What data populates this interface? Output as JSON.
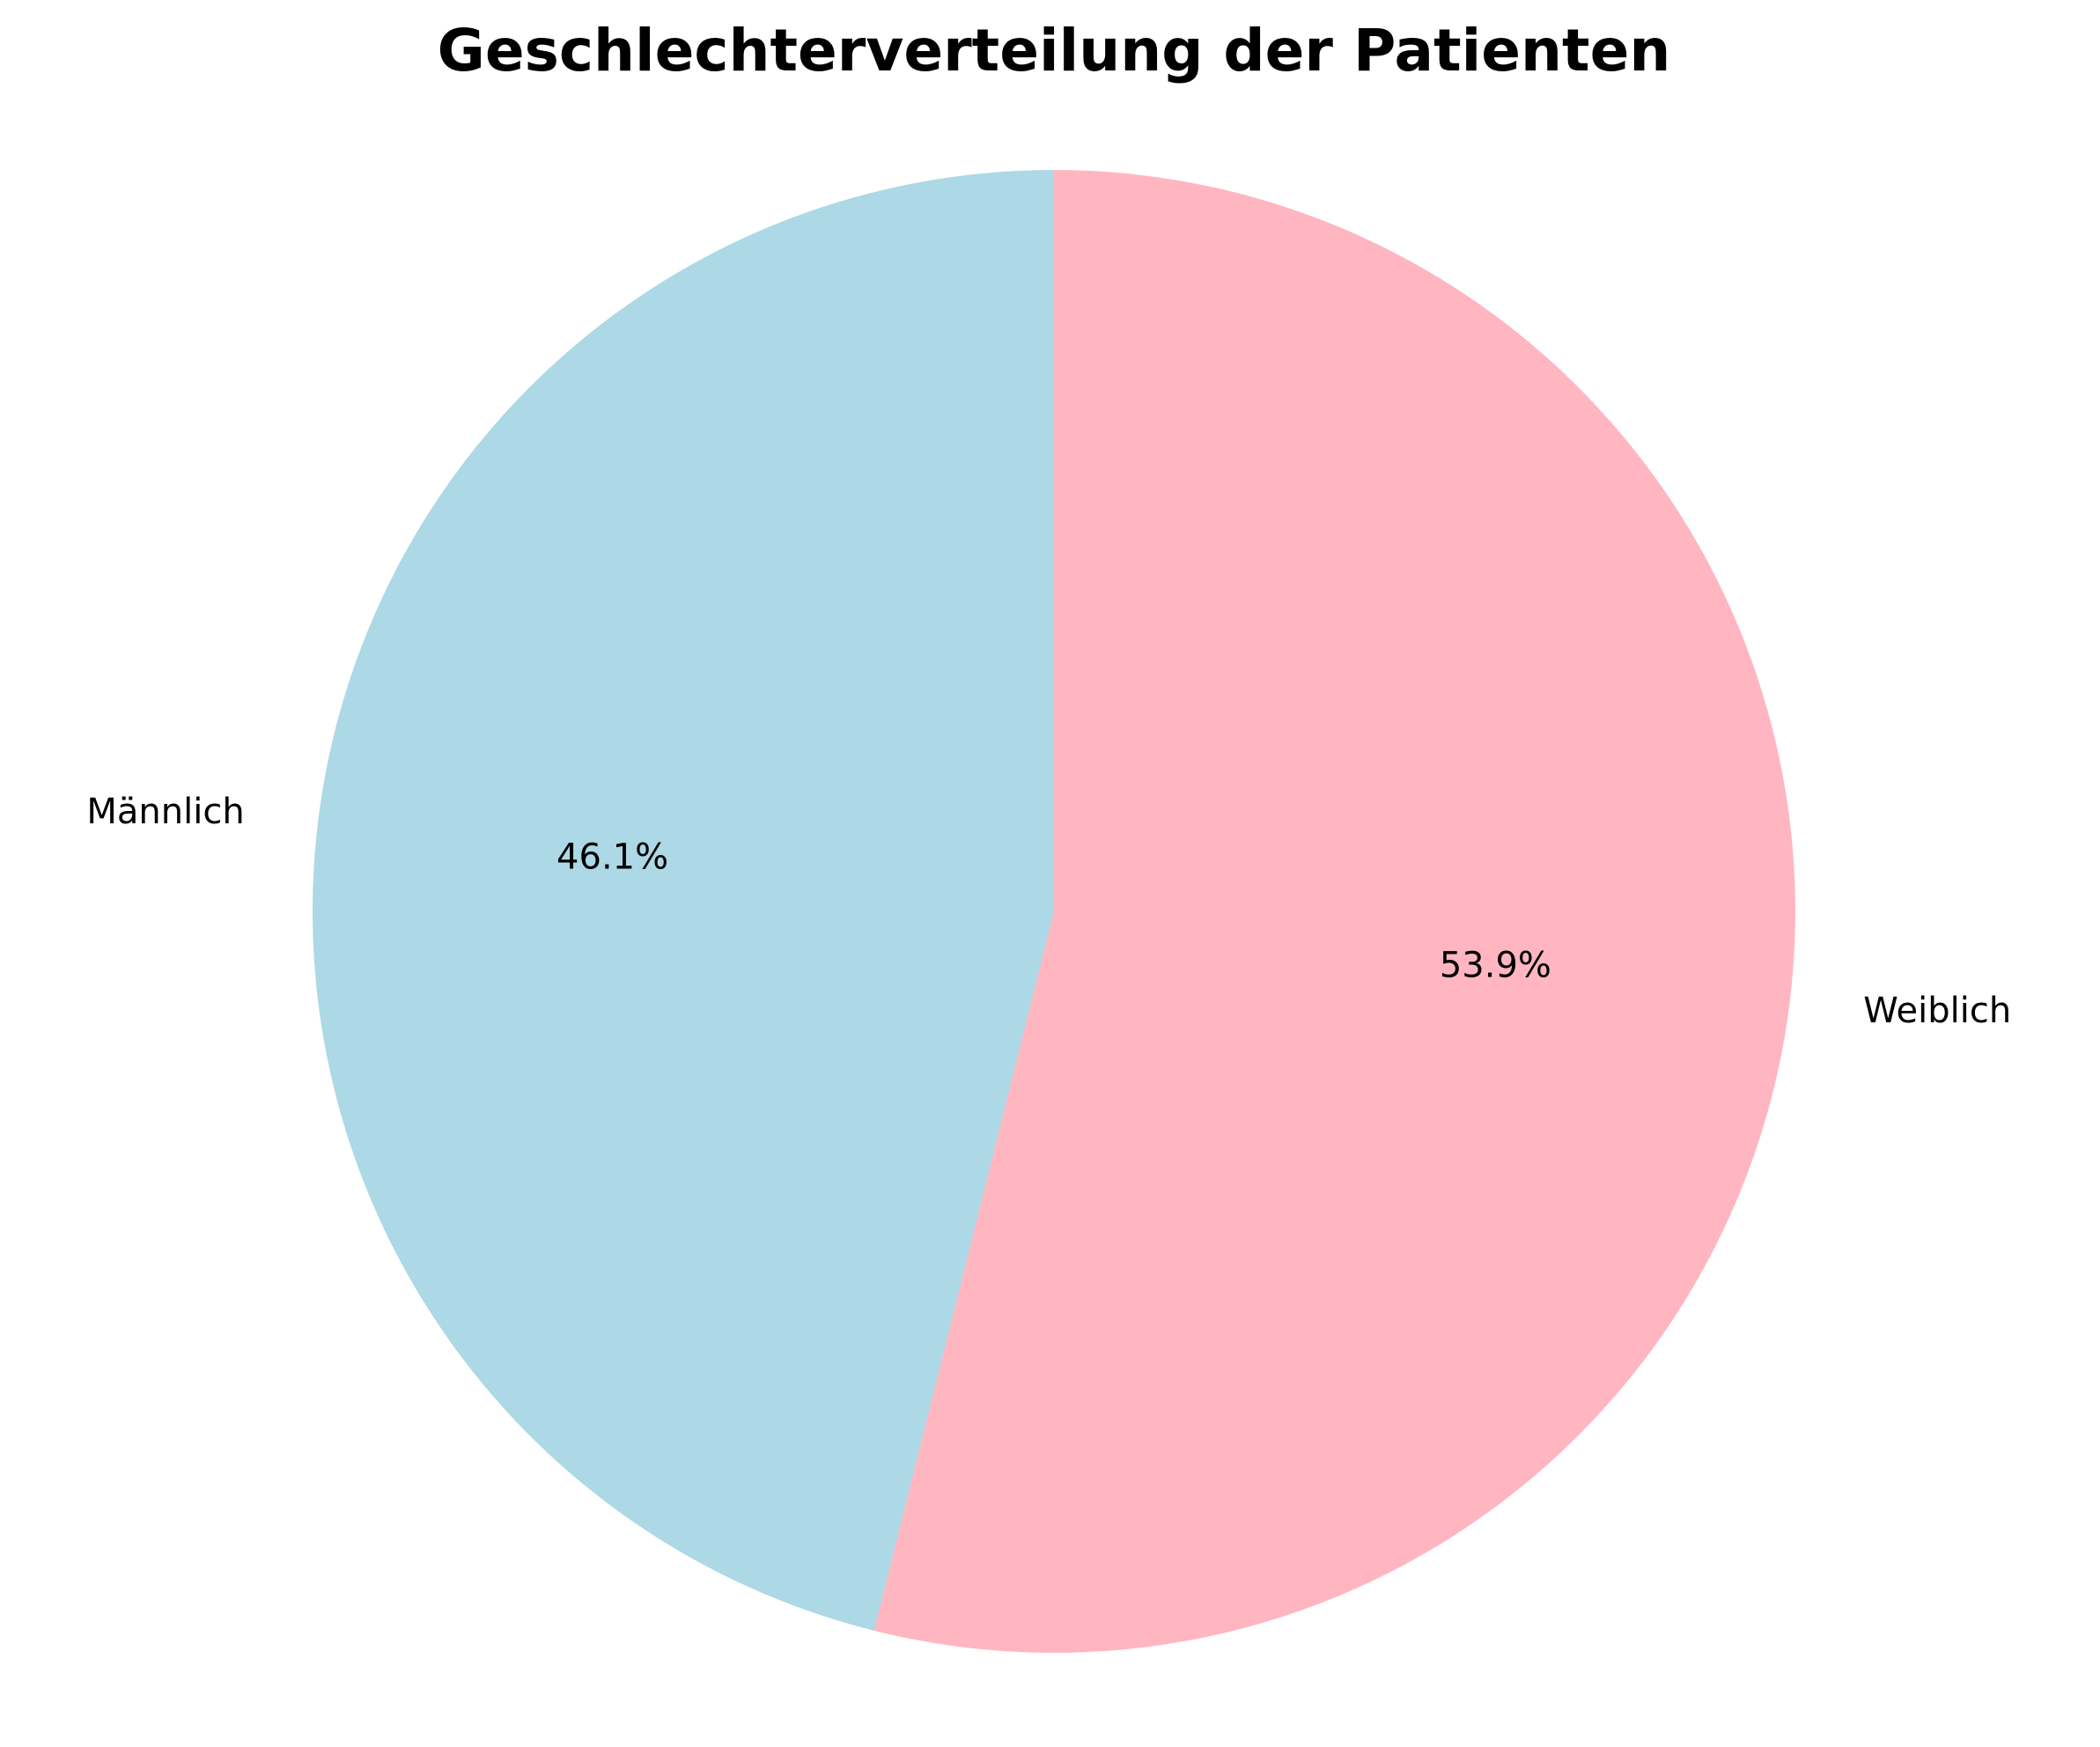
{
  "chart_data": {
    "type": "pie",
    "title": "Geschlechterverteilung der Patienten",
    "slices": [
      {
        "label": "Männlich",
        "value": 46.1,
        "pct_label": "46.1%",
        "color": "#ADD8E6"
      },
      {
        "label": "Weiblich",
        "value": 53.9,
        "pct_label": "53.9%",
        "color": "#FFB6C1"
      }
    ],
    "start_angle_deg": 90,
    "direction": "counterclockwise",
    "legend": "none"
  }
}
